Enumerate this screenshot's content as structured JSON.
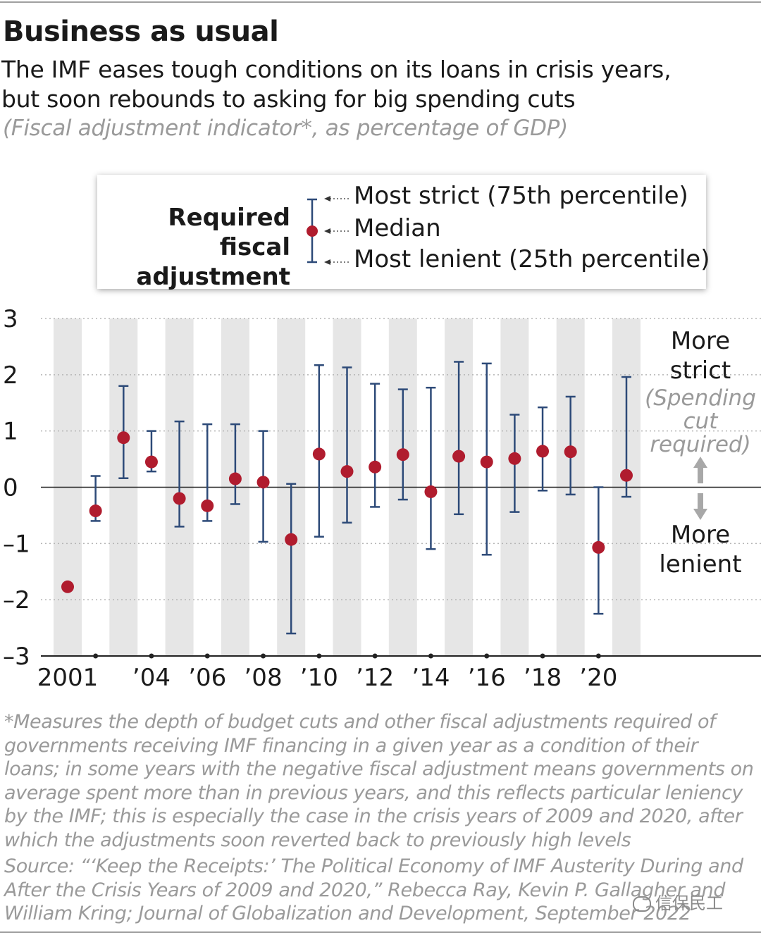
{
  "header": {
    "title": "Business as usual",
    "subtitle_line1": "The IMF eases tough conditions on its loans in crisis years,",
    "subtitle_line2": "but soon rebounds to asking for big spending cuts",
    "note": "(Fiscal adjustment indicator*, as percentage of GDP)"
  },
  "legend": {
    "title_line1": "Required fiscal",
    "title_line2": "adjustment",
    "strict_label": "Most strict (75th percentile)",
    "median_label": "Median",
    "lenient_label": "Most lenient (25th percentile)"
  },
  "annotations": {
    "more_strict": [
      "More",
      "strict"
    ],
    "spending_cut": [
      "(Spending",
      "cut",
      "required)"
    ],
    "more_lenient": [
      "More",
      "lenient"
    ]
  },
  "colors": {
    "median_dot": "#b01c2e",
    "error_bar": "#2d4a78",
    "stripe": "#e6e6e6",
    "arrow": "#a8a8a8",
    "muted_text": "#9a9a9a"
  },
  "chart_data": {
    "type": "scatter",
    "subtype": "median with interquartile range error bars",
    "ylim": [
      -3,
      3
    ],
    "yticks": [
      "3",
      "2",
      "1",
      "0",
      "–1",
      "–2",
      "–3"
    ],
    "ytick_values": [
      3,
      2,
      1,
      0,
      -1,
      -2,
      -3
    ],
    "xtick_labels": [
      {
        "year": 2001,
        "label": "2001"
      },
      {
        "year": 2004,
        "label": "’04"
      },
      {
        "year": 2006,
        "label": "’06"
      },
      {
        "year": 2008,
        "label": "’08"
      },
      {
        "year": 2010,
        "label": "’10"
      },
      {
        "year": 2012,
        "label": "’12"
      },
      {
        "year": 2014,
        "label": "’14"
      },
      {
        "year": 2016,
        "label": "’16"
      },
      {
        "year": 2018,
        "label": "’18"
      },
      {
        "year": 2020,
        "label": "’20"
      }
    ],
    "grid": "dotted horizontal",
    "series": [
      {
        "year": 2001,
        "median": -1.77,
        "p25": null,
        "p75": null
      },
      {
        "year": 2002,
        "median": -0.42,
        "p25": -0.6,
        "p75": 0.2
      },
      {
        "year": 2003,
        "median": 0.88,
        "p25": 0.16,
        "p75": 1.8
      },
      {
        "year": 2004,
        "median": 0.45,
        "p25": 0.28,
        "p75": 1.0
      },
      {
        "year": 2005,
        "median": -0.2,
        "p25": -0.7,
        "p75": 1.17
      },
      {
        "year": 2006,
        "median": -0.33,
        "p25": -0.6,
        "p75": 1.12
      },
      {
        "year": 2007,
        "median": 0.15,
        "p25": -0.3,
        "p75": 1.12
      },
      {
        "year": 2008,
        "median": 0.09,
        "p25": -0.97,
        "p75": 1.0
      },
      {
        "year": 2009,
        "median": -0.93,
        "p25": -2.6,
        "p75": 0.06
      },
      {
        "year": 2010,
        "median": 0.59,
        "p25": -0.88,
        "p75": 2.17
      },
      {
        "year": 2011,
        "median": 0.28,
        "p25": -0.63,
        "p75": 2.13
      },
      {
        "year": 2012,
        "median": 0.36,
        "p25": -0.35,
        "p75": 1.84
      },
      {
        "year": 2013,
        "median": 0.58,
        "p25": -0.22,
        "p75": 1.74
      },
      {
        "year": 2014,
        "median": -0.08,
        "p25": -1.1,
        "p75": 1.77
      },
      {
        "year": 2015,
        "median": 0.55,
        "p25": -0.48,
        "p75": 2.23
      },
      {
        "year": 2016,
        "median": 0.45,
        "p25": -1.2,
        "p75": 2.2
      },
      {
        "year": 2017,
        "median": 0.51,
        "p25": -0.44,
        "p75": 1.29
      },
      {
        "year": 2018,
        "median": 0.64,
        "p25": -0.06,
        "p75": 1.42
      },
      {
        "year": 2019,
        "median": 0.63,
        "p25": -0.13,
        "p75": 1.61
      },
      {
        "year": 2020,
        "median": -1.07,
        "p25": -2.25,
        "p75": 0.0
      },
      {
        "year": 2021,
        "median": 0.21,
        "p25": -0.17,
        "p75": 1.96
      }
    ]
  },
  "footnote": "*Measures the depth of budget cuts and other fiscal adjustments required of governments receiving IMF financing in a given year as a condition of their loans; in some years with the negative fiscal adjustment means governments on average spent more than in previous years, and this reflects particular leniency by the IMF; this is especially the case in the crisis years of 2009 and 2020, after which the adjustments soon reverted back to previously high levels",
  "source": "Source: “‘Keep the Receipts:’ The Political Economy of IMF Austerity During and After the Crisis Years of 2009 and 2020,” Rebecca Ray, Kevin P. Gallagher and William Kring; Journal of Globalization and Development, September 2022",
  "watermark": "信保民工"
}
